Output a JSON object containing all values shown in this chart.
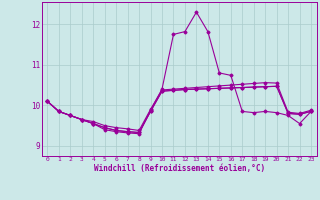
{
  "xlabel": "Windchill (Refroidissement éolien,°C)",
  "background_color": "#cce8e8",
  "line_color": "#990099",
  "grid_color": "#aacccc",
  "x_values": [
    0,
    1,
    2,
    3,
    4,
    5,
    6,
    7,
    8,
    9,
    10,
    11,
    12,
    13,
    14,
    15,
    16,
    17,
    18,
    19,
    20,
    21,
    22,
    23
  ],
  "series": [
    [
      10.1,
      9.85,
      9.75,
      9.65,
      9.55,
      9.45,
      9.38,
      9.35,
      9.33,
      9.85,
      10.35,
      10.37,
      10.39,
      10.4,
      10.41,
      10.42,
      10.43,
      10.44,
      10.45,
      10.46,
      10.47,
      9.8,
      9.78,
      9.85
    ],
    [
      10.1,
      9.85,
      9.75,
      9.65,
      9.55,
      9.4,
      9.35,
      9.32,
      9.3,
      9.88,
      10.4,
      11.75,
      11.82,
      12.3,
      11.82,
      10.8,
      10.74,
      9.85,
      9.82,
      9.85,
      9.82,
      9.75,
      9.55,
      9.85
    ],
    [
      10.1,
      9.85,
      9.75,
      9.65,
      9.55,
      9.45,
      9.38,
      9.35,
      9.33,
      9.85,
      10.35,
      10.37,
      10.39,
      10.4,
      10.41,
      10.42,
      10.43,
      10.44,
      10.45,
      10.46,
      10.47,
      9.8,
      9.78,
      9.85
    ],
    [
      10.1,
      9.85,
      9.75,
      9.65,
      9.6,
      9.5,
      9.45,
      9.42,
      9.38,
      9.9,
      10.38,
      10.4,
      10.42,
      10.44,
      10.46,
      10.48,
      10.5,
      10.52,
      10.54,
      10.56,
      10.55,
      9.83,
      9.8,
      9.88
    ]
  ],
  "ylim": [
    8.75,
    12.55
  ],
  "yticks": [
    9,
    10,
    11,
    12
  ],
  "xticks": [
    0,
    1,
    2,
    3,
    4,
    5,
    6,
    7,
    8,
    9,
    10,
    11,
    12,
    13,
    14,
    15,
    16,
    17,
    18,
    19,
    20,
    21,
    22,
    23
  ],
  "figsize": [
    3.2,
    2.0
  ],
  "dpi": 100
}
